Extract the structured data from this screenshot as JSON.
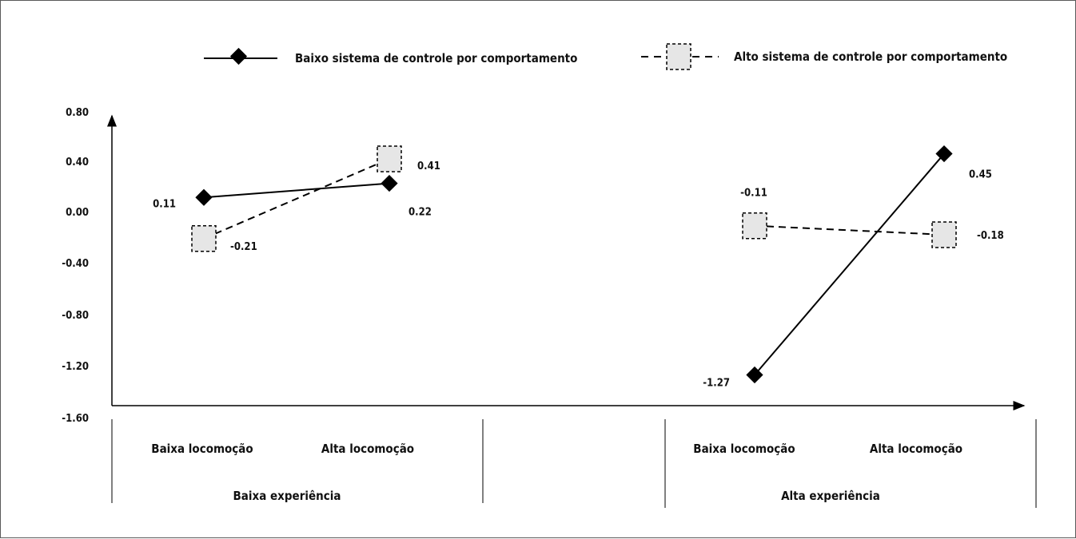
{
  "chart_data": {
    "type": "line",
    "title": "",
    "xlabel": "",
    "ylabel": "",
    "ylim": [
      -1.6,
      0.8
    ],
    "yticks": [
      "0.80",
      "0.40",
      "0.00",
      "-0.40",
      "-0.80",
      "-1.20",
      "-1.60"
    ],
    "ytick_values": [
      0.8,
      0.4,
      0.0,
      -0.4,
      -0.8,
      -1.2,
      -1.6
    ],
    "grid": false,
    "legend_position": "top",
    "groups": [
      {
        "label": "Baixa experiência",
        "categories": [
          "Baixa locomoção",
          "Alta locomoção"
        ]
      },
      {
        "label": "Alta experiência",
        "categories": [
          "Baixa locomoção",
          "Alta locomoção"
        ]
      }
    ],
    "series": [
      {
        "name": "Baixo sistema de controle por comportamento",
        "line_style": "solid",
        "marker": "diamond",
        "color": "#000000",
        "values": [
          [
            0.11,
            0.22
          ],
          [
            -1.27,
            0.45
          ]
        ],
        "labels": [
          [
            "0.11",
            "0.22"
          ],
          [
            "-1.27",
            "0.45"
          ]
        ]
      },
      {
        "name": "Alto sistema de controle por comportamento",
        "line_style": "dashed",
        "marker": "square",
        "color": "#e6e6e6",
        "values": [
          [
            -0.21,
            0.41
          ],
          [
            -0.11,
            -0.18
          ]
        ],
        "labels": [
          [
            "-0.21",
            "0.41"
          ],
          [
            "-0.11",
            "-0.18"
          ]
        ]
      }
    ]
  }
}
